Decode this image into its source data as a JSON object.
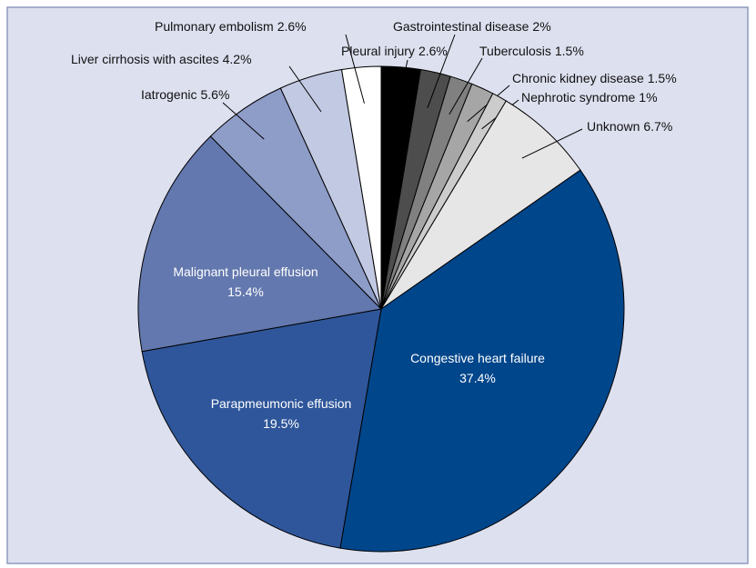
{
  "chart_data": {
    "type": "pie",
    "categories": [
      "Pleural injury",
      "Gastrointestinal disease",
      "Tuberculosis",
      "Chronic kidney disease",
      "Nephrotic syndrome",
      "Unknown",
      "Congestive heart failure",
      "Parapmeumonic effusion",
      "Malignant pleural effusion",
      "Iatrogenic",
      "Liver cirrhosis with ascites",
      "Pulmonary embolism"
    ],
    "values": [
      2.6,
      2,
      1.5,
      1.5,
      1,
      6.7,
      37.4,
      19.5,
      15.4,
      5.6,
      4.2,
      2.6
    ],
    "value_labels": [
      "2.6%",
      "2%",
      "1.5%",
      "1.5%",
      "1%",
      "6.7%",
      "37.4%",
      "19.5%",
      "15.4%",
      "5.6%",
      "4.2%",
      "2.6%"
    ],
    "colors": [
      "#000000",
      "#4d4d4d",
      "#808080",
      "#a6a6a6",
      "#cccccc",
      "#e6e6e6",
      "#00468b",
      "#2f569a",
      "#6378ae",
      "#8e9cc8",
      "#c2c9e2",
      "#ffffff"
    ]
  }
}
